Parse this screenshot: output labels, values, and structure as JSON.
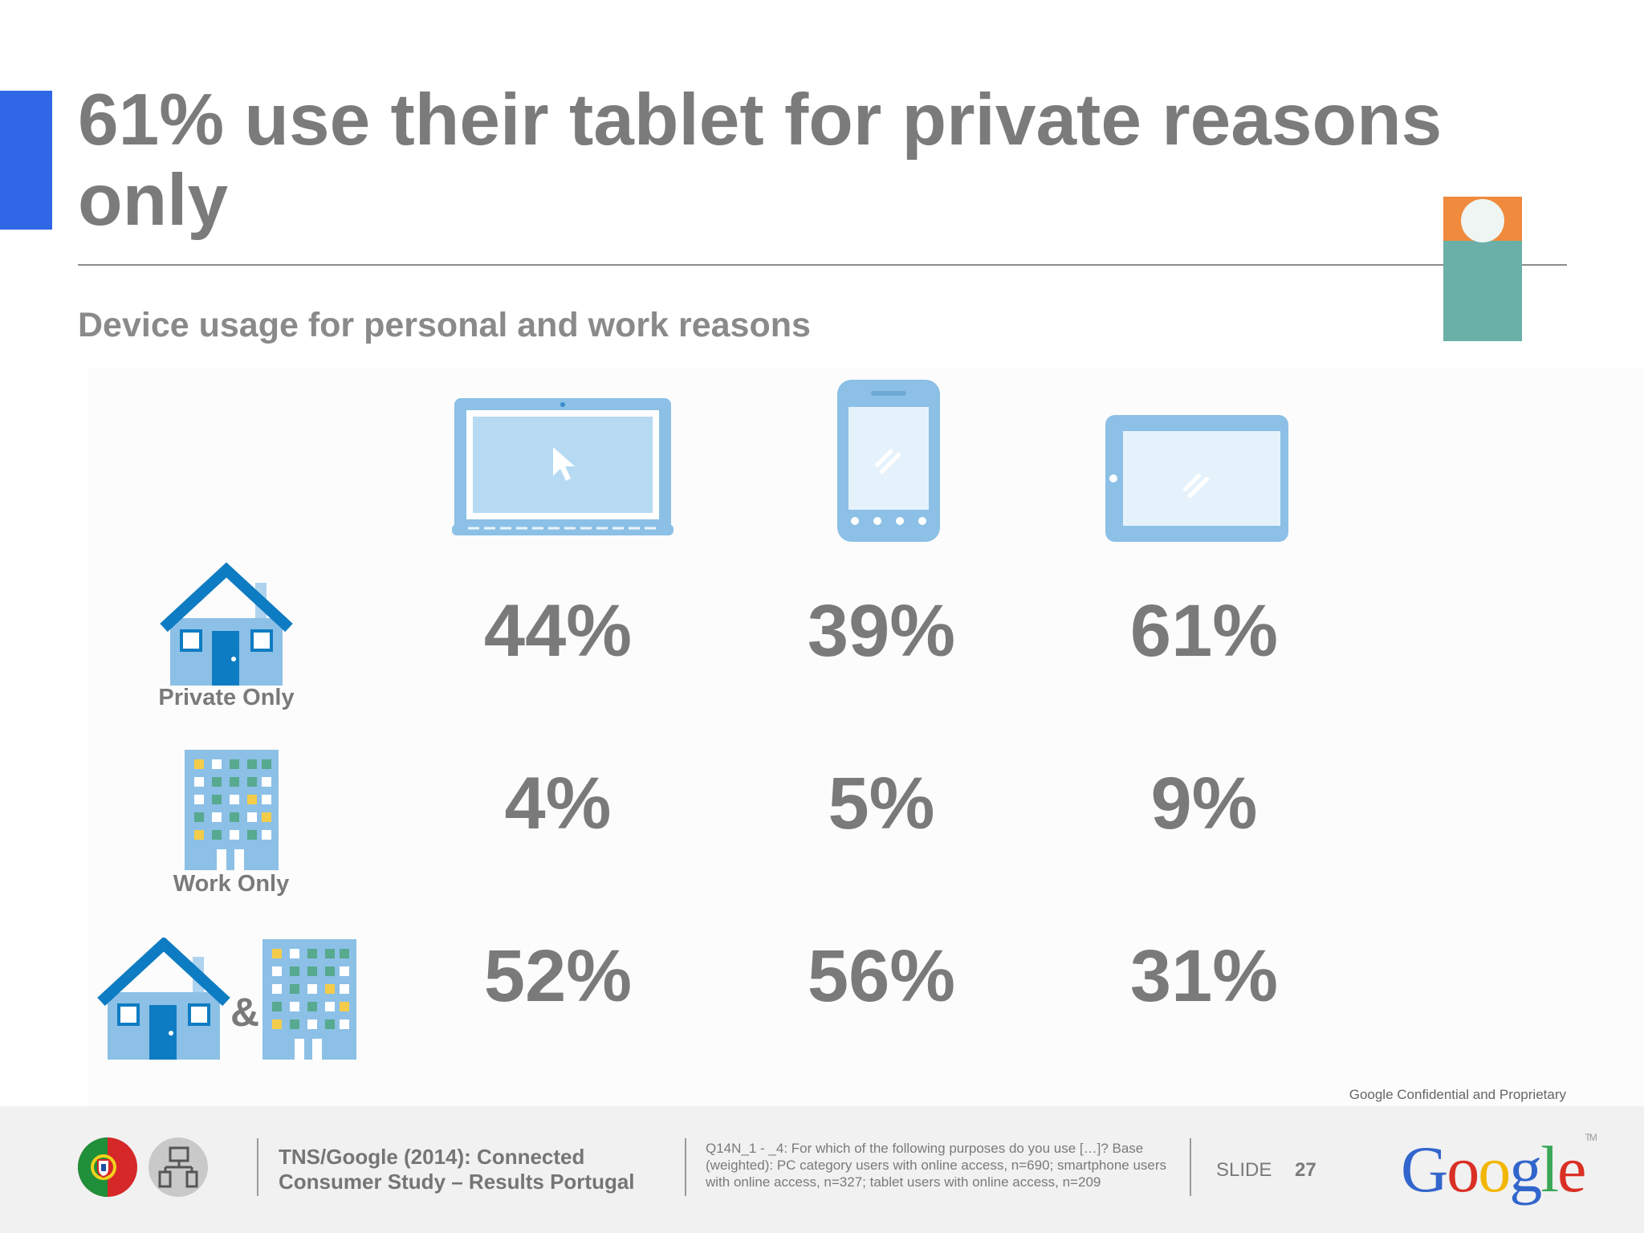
{
  "slide": {
    "title": "61% use their tablet for private reasons only",
    "subtitle": "Device usage for personal and work reasons",
    "accent_color": "#2f67e6"
  },
  "devices": [
    {
      "name": "laptop-icon"
    },
    {
      "name": "smartphone-icon"
    },
    {
      "name": "tablet-icon"
    }
  ],
  "rows": [
    {
      "label": "Private Only",
      "icon": "house-icon",
      "values": [
        "44%",
        "39%",
        "61%"
      ]
    },
    {
      "label": "Work Only",
      "icon": "office-building-icon",
      "values": [
        "4%",
        "5%",
        "9%"
      ]
    },
    {
      "label": "&",
      "icon": "house-and-building-icon",
      "values": [
        "52%",
        "56%",
        "31%"
      ]
    }
  ],
  "footer": {
    "confidential": "Google Confidential and Proprietary",
    "source": "TNS/Google (2014): Connected Consumer Study – Results Portugal",
    "note": "Q14N_1 - _4: For which of the following purposes do you use […]? Base (weighted): PC category users with online access, n=690; smartphone users with online access, n=327; tablet users with online access, n=209",
    "slide_label": "SLIDE",
    "slide_number": "27",
    "logo_letters": [
      "G",
      "o",
      "o",
      "g",
      "l",
      "e"
    ],
    "logo_colors": [
      "#3366cc",
      "#d93025",
      "#f2b600",
      "#3366cc",
      "#3aa757",
      "#d93025"
    ],
    "logo_tm": "TM"
  }
}
